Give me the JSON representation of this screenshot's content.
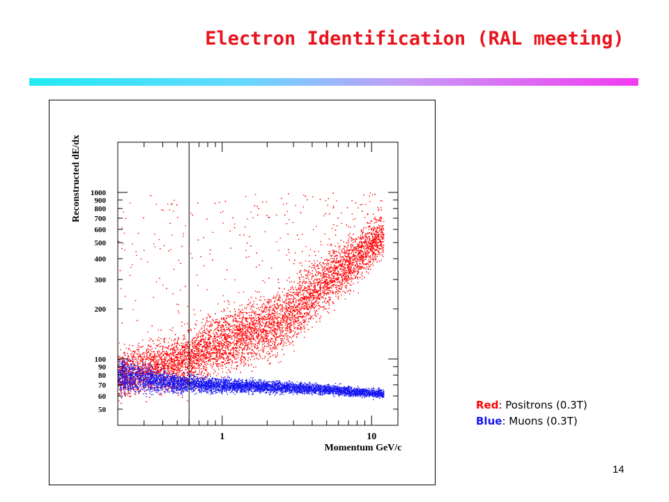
{
  "slide": {
    "title": "Electron Identification (RAL meeting)",
    "page_number": "14",
    "title_bar_colors": [
      "#22eaf2",
      "#c79af6",
      "#f23af0"
    ]
  },
  "legend": {
    "items": [
      {
        "key": "Red",
        "sep": ":",
        "text": " Positrons (0.3T)",
        "color": "#ff0000"
      },
      {
        "key": "Blue",
        "sep": ":",
        "text": " Muons (0.3T)",
        "color": "#1515f0"
      }
    ]
  },
  "chart_data": {
    "type": "scatter",
    "xlabel": "Momentum GeV/c",
    "ylabel": "Reconstructed dE/dx",
    "x_scale": "log",
    "y_scale": "log",
    "xlim": [
      0.2,
      15
    ],
    "ylim": [
      40,
      2000
    ],
    "x_tick_labels": [
      {
        "value": 1,
        "label": "1"
      },
      {
        "value": 10,
        "label": "10"
      }
    ],
    "y_tick_labels": [
      {
        "value": 50,
        "label": "50"
      },
      {
        "value": 60,
        "label": "60"
      },
      {
        "value": 70,
        "label": "70"
      },
      {
        "value": 80,
        "label": "80"
      },
      {
        "value": 90,
        "label": "90"
      },
      {
        "value": 100,
        "label": "100"
      },
      {
        "value": 200,
        "label": "200"
      },
      {
        "value": 300,
        "label": "300"
      },
      {
        "value": 400,
        "label": "400"
      },
      {
        "value": 500,
        "label": "500"
      },
      {
        "value": 600,
        "label": "600"
      },
      {
        "value": 700,
        "label": "700"
      },
      {
        "value": 800,
        "label": "800"
      },
      {
        "value": 900,
        "label": "900"
      },
      {
        "value": 1000,
        "label": "1000"
      }
    ],
    "vertical_line_x": 0.6,
    "grid": false,
    "series": [
      {
        "color": "#ff0000",
        "band": [
          {
            "x": 0.2,
            "y_center": 80,
            "y_lo": 60,
            "y_hi": 110
          },
          {
            "x": 0.5,
            "y_center": 96,
            "y_lo": 70,
            "y_hi": 150
          },
          {
            "x": 1.0,
            "y_center": 125,
            "y_lo": 95,
            "y_hi": 210
          },
          {
            "x": 2.5,
            "y_center": 170,
            "y_lo": 120,
            "y_hi": 280
          },
          {
            "x": 5.0,
            "y_center": 300,
            "y_lo": 210,
            "y_hi": 450
          },
          {
            "x": 12.0,
            "y_center": 560,
            "y_lo": 430,
            "y_hi": 760
          }
        ]
      },
      {
        "color": "#1515f0",
        "band": [
          {
            "x": 0.2,
            "y_center": 80,
            "y_lo": 66,
            "y_hi": 105
          },
          {
            "x": 0.5,
            "y_center": 72,
            "y_lo": 64,
            "y_hi": 82
          },
          {
            "x": 1.0,
            "y_center": 70,
            "y_lo": 64,
            "y_hi": 77
          },
          {
            "x": 2.5,
            "y_center": 68,
            "y_lo": 63,
            "y_hi": 74
          },
          {
            "x": 5.0,
            "y_center": 66,
            "y_lo": 62,
            "y_hi": 71
          },
          {
            "x": 12.0,
            "y_center": 62,
            "y_lo": 59,
            "y_hi": 66
          }
        ]
      }
    ]
  }
}
